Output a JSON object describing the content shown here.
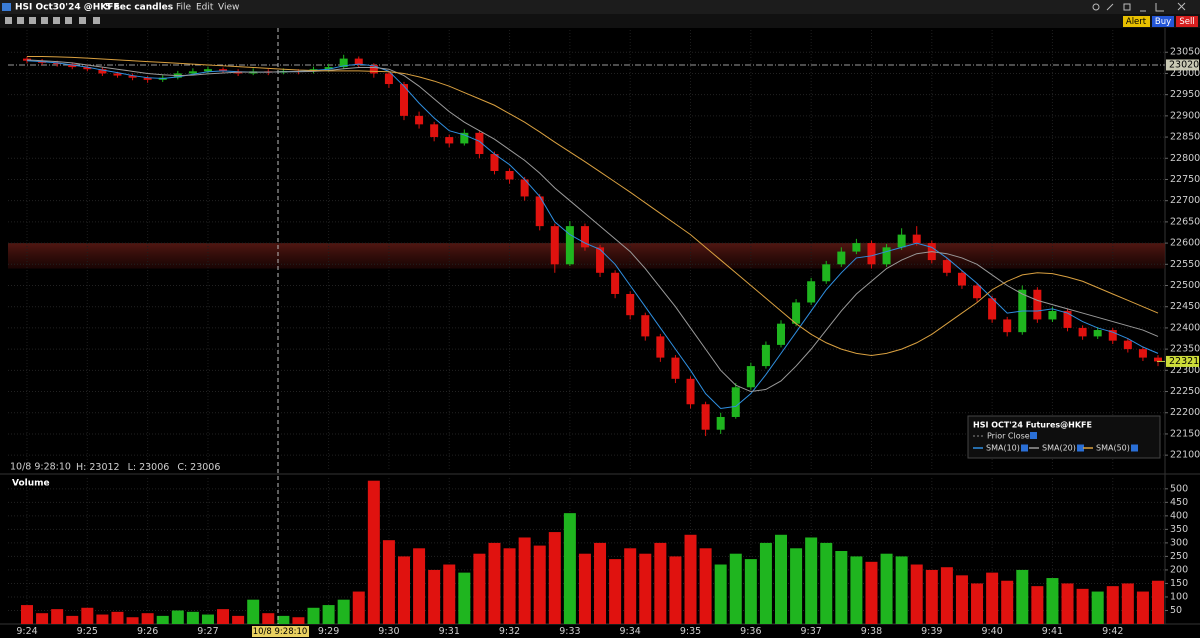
{
  "ui": {
    "menu": [
      "File",
      "Edit",
      "View"
    ],
    "buttons": [
      "Alert",
      "Buy",
      "Sell"
    ]
  },
  "chart_data": {
    "type": "candlestick",
    "title": "HSI Oct30'24 @HKFE",
    "interval": "5 sec candles",
    "legend_title": "HSI OCT'24 Futures@HKFE",
    "info": {
      "time": "10/8 9:28:10",
      "labels": [
        "H:",
        "L:",
        "C:"
      ],
      "values": [
        23012,
        23006,
        23006
      ]
    },
    "up_color": "#1fb51f",
    "down_color": "#e0120f",
    "categories": [
      "9:24",
      null,
      null,
      null,
      "9:25",
      null,
      null,
      null,
      "9:26",
      null,
      null,
      null,
      "9:27",
      null,
      null,
      null,
      null,
      null,
      null,
      null,
      "9:29",
      null,
      null,
      null,
      "9:30",
      null,
      null,
      null,
      "9:31",
      null,
      null,
      null,
      "9:32",
      null,
      null,
      null,
      "9:33",
      null,
      null,
      null,
      "9:34",
      null,
      null,
      null,
      "9:35",
      null,
      null,
      null,
      "9:36",
      null,
      null,
      null,
      "9:37",
      null,
      null,
      null,
      "9:38",
      null,
      null,
      null,
      "9:39",
      null,
      null,
      null,
      "9:40",
      null,
      null,
      null,
      "9:41",
      null,
      null,
      null,
      "9:42",
      null,
      null,
      null
    ],
    "ohlc": [
      [
        23035,
        23040,
        23024,
        23030
      ],
      [
        23030,
        23034,
        23020,
        23025
      ],
      [
        23025,
        23030,
        23016,
        23022
      ],
      [
        23022,
        23026,
        23010,
        23015
      ],
      [
        23015,
        23020,
        23005,
        23010
      ],
      [
        23010,
        23014,
        22994,
        23000
      ],
      [
        23000,
        23004,
        22990,
        22995
      ],
      [
        22995,
        23000,
        22984,
        22990
      ],
      [
        22990,
        22994,
        22978,
        22985
      ],
      [
        22985,
        22996,
        22980,
        22990
      ],
      [
        22990,
        23006,
        22986,
        23000
      ],
      [
        23000,
        23012,
        22996,
        23005
      ],
      [
        23005,
        23016,
        23000,
        23010
      ],
      [
        23010,
        23014,
        23000,
        23005
      ],
      [
        23005,
        23010,
        22994,
        23000
      ],
      [
        23000,
        23012,
        22996,
        23005
      ],
      [
        23005,
        23010,
        22996,
        23002
      ],
      [
        23002,
        23012,
        22998,
        23006
      ],
      [
        23006,
        23010,
        22998,
        23005
      ],
      [
        23005,
        23016,
        23000,
        23010
      ],
      [
        23010,
        23022,
        23004,
        23015
      ],
      [
        23015,
        23044,
        23010,
        23035
      ],
      [
        23035,
        23040,
        23014,
        23020
      ],
      [
        23020,
        23024,
        22990,
        23000
      ],
      [
        23000,
        23004,
        22966,
        22975
      ],
      [
        22975,
        22980,
        22890,
        22900
      ],
      [
        22900,
        22910,
        22870,
        22880
      ],
      [
        22880,
        22886,
        22840,
        22850
      ],
      [
        22850,
        22856,
        22826,
        22835
      ],
      [
        22835,
        22868,
        22830,
        22860
      ],
      [
        22860,
        22864,
        22800,
        22810
      ],
      [
        22810,
        22816,
        22762,
        22770
      ],
      [
        22770,
        22776,
        22740,
        22750
      ],
      [
        22750,
        22756,
        22700,
        22710
      ],
      [
        22710,
        22716,
        22630,
        22640
      ],
      [
        22640,
        22646,
        22530,
        22550
      ],
      [
        22550,
        22652,
        22546,
        22640
      ],
      [
        22640,
        22646,
        22582,
        22590
      ],
      [
        22590,
        22596,
        22520,
        22530
      ],
      [
        22530,
        22536,
        22470,
        22480
      ],
      [
        22480,
        22486,
        22420,
        22430
      ],
      [
        22430,
        22436,
        22370,
        22380
      ],
      [
        22380,
        22386,
        22320,
        22330
      ],
      [
        22330,
        22336,
        22270,
        22280
      ],
      [
        22280,
        22286,
        22210,
        22220
      ],
      [
        22220,
        22226,
        22145,
        22160
      ],
      [
        22160,
        22200,
        22150,
        22190
      ],
      [
        22190,
        22270,
        22186,
        22260
      ],
      [
        22260,
        22318,
        22254,
        22310
      ],
      [
        22310,
        22368,
        22304,
        22360
      ],
      [
        22360,
        22418,
        22354,
        22410
      ],
      [
        22410,
        22468,
        22404,
        22460
      ],
      [
        22460,
        22518,
        22454,
        22510
      ],
      [
        22510,
        22558,
        22504,
        22550
      ],
      [
        22550,
        22590,
        22544,
        22580
      ],
      [
        22580,
        22610,
        22574,
        22600
      ],
      [
        22600,
        22606,
        22540,
        22550
      ],
      [
        22550,
        22598,
        22544,
        22590
      ],
      [
        22590,
        22635,
        22584,
        22620
      ],
      [
        22620,
        22640,
        22594,
        22600
      ],
      [
        22600,
        22606,
        22552,
        22560
      ],
      [
        22560,
        22566,
        22522,
        22530
      ],
      [
        22530,
        22536,
        22492,
        22500
      ],
      [
        22500,
        22506,
        22462,
        22470
      ],
      [
        22470,
        22476,
        22412,
        22420
      ],
      [
        22420,
        22426,
        22380,
        22390
      ],
      [
        22390,
        22500,
        22384,
        22490
      ],
      [
        22490,
        22496,
        22412,
        22420
      ],
      [
        22420,
        22450,
        22414,
        22440
      ],
      [
        22440,
        22446,
        22392,
        22400
      ],
      [
        22400,
        22406,
        22372,
        22380
      ],
      [
        22380,
        22402,
        22374,
        22395
      ],
      [
        22395,
        22400,
        22362,
        22370
      ],
      [
        22370,
        22376,
        22342,
        22350
      ],
      [
        22350,
        22356,
        22322,
        22330
      ],
      [
        22330,
        22336,
        22310,
        22321
      ]
    ],
    "sma": [
      {
        "name": "SMA(10)",
        "color": "#2f8fe0",
        "values": [
          23030,
          23028,
          23025,
          23020,
          23015,
          23008,
          23002,
          22995,
          22990,
          22988,
          22992,
          22998,
          23004,
          23006,
          23004,
          23003,
          23003,
          23004,
          23005,
          23007,
          23010,
          23018,
          23022,
          23018,
          23005,
          22970,
          22930,
          22895,
          22865,
          22855,
          22840,
          22810,
          22785,
          22750,
          22710,
          22650,
          22620,
          22600,
          22585,
          22550,
          22500,
          22450,
          22400,
          22350,
          22300,
          22245,
          22210,
          22215,
          22245,
          22290,
          22340,
          22390,
          22440,
          22490,
          22530,
          22565,
          22570,
          22580,
          22590,
          22600,
          22590,
          22565,
          22535,
          22505,
          22470,
          22435,
          22440,
          22440,
          22445,
          22435,
          22415,
          22400,
          22390,
          22375,
          22355,
          22340
        ]
      },
      {
        "name": "SMA(20)",
        "color": "#9a9a9a",
        "values": [
          23032,
          23030,
          23028,
          23025,
          23020,
          23015,
          23010,
          23005,
          23000,
          22997,
          22995,
          22996,
          22999,
          23001,
          23003,
          23003,
          23003,
          23004,
          23004,
          23005,
          23007,
          23011,
          23014,
          23014,
          23010,
          22995,
          22970,
          22940,
          22910,
          22885,
          22865,
          22845,
          22820,
          22795,
          22765,
          22730,
          22700,
          22670,
          22640,
          22610,
          22580,
          22540,
          22495,
          22450,
          22400,
          22350,
          22300,
          22265,
          22250,
          22255,
          22275,
          22310,
          22350,
          22395,
          22440,
          22480,
          22510,
          22540,
          22560,
          22575,
          22580,
          22575,
          22565,
          22550,
          22525,
          22500,
          22480,
          22465,
          22455,
          22445,
          22435,
          22425,
          22415,
          22405,
          22395,
          22380
        ]
      },
      {
        "name": "SMA(50)",
        "color": "#d9a040",
        "values": [
          23040,
          23040,
          23039,
          23038,
          23036,
          23034,
          23032,
          23030,
          23028,
          23026,
          23024,
          23022,
          23020,
          23018,
          23016,
          23014,
          23012,
          23010,
          23008,
          23007,
          23006,
          23006,
          23006,
          23005,
          23004,
          23000,
          22992,
          22982,
          22970,
          22955,
          22940,
          22925,
          22905,
          22885,
          22862,
          22838,
          22815,
          22792,
          22768,
          22744,
          22720,
          22695,
          22670,
          22645,
          22620,
          22590,
          22560,
          22530,
          22500,
          22470,
          22440,
          22410,
          22385,
          22365,
          22350,
          22340,
          22335,
          22340,
          22350,
          22365,
          22385,
          22410,
          22435,
          22460,
          22490,
          22510,
          22525,
          22530,
          22528,
          22520,
          22510,
          22495,
          22480,
          22465,
          22450,
          22435
        ]
      }
    ],
    "prior_close": {
      "label": "Prior Close",
      "value": 23020
    },
    "last": 22321,
    "zone": [
      22540,
      22600
    ],
    "ylim": [
      22065,
      23060
    ],
    "yticks": [
      22100,
      22150,
      22200,
      22250,
      22300,
      22350,
      22400,
      22450,
      22500,
      22550,
      22600,
      22650,
      22700,
      22750,
      22800,
      22850,
      22900,
      22950,
      23000,
      23050
    ],
    "grid": true,
    "volume": {
      "title": "Volume",
      "values": [
        70,
        40,
        55,
        30,
        60,
        35,
        45,
        25,
        40,
        30,
        50,
        45,
        35,
        55,
        30,
        90,
        40,
        30,
        25,
        60,
        70,
        90,
        120,
        530,
        310,
        250,
        280,
        200,
        220,
        190,
        260,
        300,
        280,
        320,
        290,
        340,
        410,
        260,
        300,
        240,
        280,
        260,
        300,
        250,
        330,
        280,
        220,
        260,
        240,
        300,
        330,
        280,
        320,
        300,
        270,
        250,
        230,
        260,
        250,
        220,
        200,
        210,
        180,
        150,
        190,
        160,
        200,
        140,
        170,
        150,
        130,
        120,
        140,
        150,
        120,
        160
      ],
      "ylim": [
        0,
        540
      ],
      "yticks": [
        50,
        100,
        150,
        200,
        250,
        300,
        350,
        400,
        450,
        500
      ]
    }
  }
}
